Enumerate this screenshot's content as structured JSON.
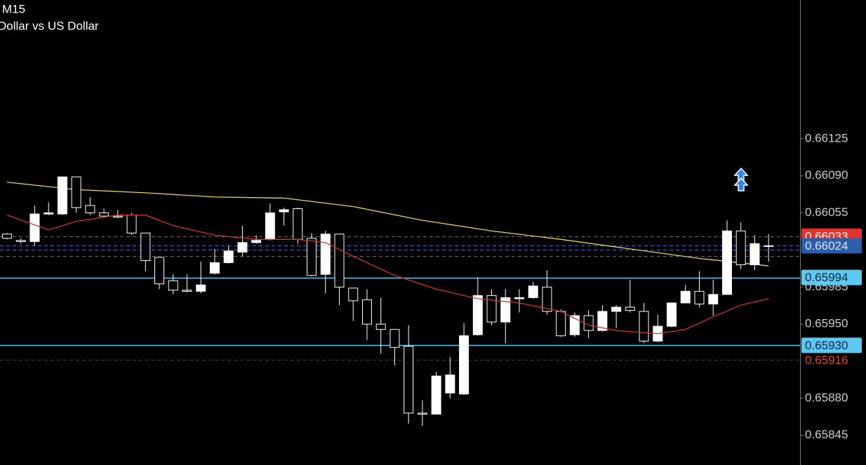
{
  "chart_data": {
    "type": "candlestick",
    "title": "M15",
    "subtitle": "Dollar vs US Dollar",
    "up_color": "#ffffff",
    "down_color": "#000000",
    "wick_color": "#ffffff",
    "open": [
      0.66035,
      0.66029,
      0.66028,
      0.66054,
      0.66054,
      0.66089,
      0.66062,
      0.66055,
      0.66052,
      0.66053,
      0.66036,
      0.66013,
      0.65991,
      0.65982,
      0.65981,
      0.65998,
      0.66008,
      0.66018,
      0.66027,
      0.6603,
      0.66056,
      0.66059,
      0.66031,
      0.65997,
      0.66035,
      0.65984,
      0.65973,
      0.6595,
      0.65945,
      0.65929,
      0.65866,
      0.65865,
      0.65885,
      0.65884,
      0.6594,
      0.65977,
      0.65952,
      0.65974,
      0.65975,
      0.65985,
      0.65962,
      0.6594,
      0.65958,
      0.65944,
      0.65962,
      0.65966,
      0.65962,
      0.65934,
      0.65948,
      0.6597,
      0.65981,
      0.65969,
      0.65978,
      0.66038,
      0.66006,
      0.66024
    ],
    "high": [
      0.66036,
      0.66031,
      0.66062,
      0.66065,
      0.66089,
      0.66089,
      0.6607,
      0.66059,
      0.66058,
      0.66055,
      0.66036,
      0.66013,
      0.65997,
      0.65997,
      0.66009,
      0.66021,
      0.66024,
      0.66043,
      0.66034,
      0.66064,
      0.6606,
      0.6606,
      0.66036,
      0.66038,
      0.66035,
      0.65984,
      0.65983,
      0.65975,
      0.65945,
      0.65949,
      0.65878,
      0.65905,
      0.65919,
      0.65951,
      0.65994,
      0.65983,
      0.65983,
      0.65983,
      0.6599,
      0.66001,
      0.65964,
      0.65961,
      0.65963,
      0.65968,
      0.65968,
      0.65992,
      0.6597,
      0.65959,
      0.6597,
      0.65987,
      0.66,
      0.65992,
      0.66048,
      0.66046,
      0.66034,
      0.66035
    ],
    "low": [
      0.6603,
      0.66026,
      0.66024,
      0.66053,
      0.66053,
      0.66055,
      0.66053,
      0.66051,
      0.6605,
      0.66034,
      0.66,
      0.65983,
      0.65978,
      0.6598,
      0.65979,
      0.65997,
      0.66007,
      0.66014,
      0.66026,
      0.66029,
      0.66043,
      0.66026,
      0.65995,
      0.65979,
      0.65968,
      0.65953,
      0.65935,
      0.65922,
      0.65911,
      0.65856,
      0.65854,
      0.65865,
      0.6588,
      0.65883,
      0.65939,
      0.65949,
      0.65932,
      0.65961,
      0.65974,
      0.65959,
      0.65938,
      0.65938,
      0.65937,
      0.65943,
      0.65946,
      0.65961,
      0.65932,
      0.65933,
      0.65947,
      0.6597,
      0.65966,
      0.65958,
      0.65978,
      0.66002,
      0.66001,
      0.66009
    ],
    "close": [
      0.66031,
      0.66028,
      0.66054,
      0.66055,
      0.66089,
      0.6606,
      0.66055,
      0.66052,
      0.66051,
      0.66036,
      0.6601,
      0.65988,
      0.65982,
      0.65981,
      0.65987,
      0.66008,
      0.66019,
      0.66027,
      0.66029,
      0.66055,
      0.66058,
      0.6603,
      0.65996,
      0.66035,
      0.65985,
      0.65972,
      0.6595,
      0.65945,
      0.65928,
      0.65866,
      0.65865,
      0.65901,
      0.65902,
      0.65939,
      0.65977,
      0.65952,
      0.65975,
      0.65975,
      0.65986,
      0.65962,
      0.65939,
      0.65958,
      0.65944,
      0.65962,
      0.65966,
      0.65963,
      0.65934,
      0.65948,
      0.6597,
      0.65981,
      0.65969,
      0.65978,
      0.66038,
      0.66006,
      0.66026,
      0.66024
    ],
    "ma_slow": {
      "color": "#e8d44d",
      "x": [
        0,
        5,
        10,
        15,
        20,
        25,
        30,
        35,
        40,
        45,
        50,
        55
      ],
      "values": [
        0.66084,
        0.66077,
        0.66074,
        0.6607,
        0.66069,
        0.66061,
        0.66048,
        0.66038,
        0.6603,
        0.66021,
        0.66012,
        0.66005
      ]
    },
    "ma_fast": {
      "color": "#d8302a",
      "x": [
        0,
        3,
        5,
        8,
        10,
        12,
        15,
        18,
        21,
        23,
        25,
        28,
        31,
        34,
        37,
        40,
        42,
        44,
        47,
        49,
        51,
        53,
        55
      ],
      "values": [
        0.66053,
        0.66039,
        0.66047,
        0.66053,
        0.66053,
        0.66043,
        0.66034,
        0.6603,
        0.6603,
        0.66027,
        0.66014,
        0.65996,
        0.65983,
        0.65974,
        0.6597,
        0.65962,
        0.65949,
        0.65944,
        0.65941,
        0.65945,
        0.65957,
        0.65968,
        0.65974
      ]
    },
    "ylim": [
      0.65817,
      0.66256
    ],
    "yticks": [
      0.66125,
      {
        "value": 0.6609,
        "label": "0.66090"
      },
      0.66055,
      0.65985,
      {
        "value": 0.6595,
        "label": "0.65950"
      },
      {
        "value": 0.6588,
        "label": "0.65880"
      },
      0.65845
    ],
    "levels": [
      {
        "value": 0.6602,
        "color": "#3a6fc4",
        "dashed": true
      },
      {
        "value": 0.66014,
        "color": "#3a6fc4",
        "dashed": true
      },
      {
        "value": 0.66033,
        "color": "#e0342c",
        "dashed": true,
        "label_bg": "#e0342c",
        "label_color": "#ffffff"
      },
      {
        "value": 0.66024,
        "color": "#3a6fc4",
        "dashed": true,
        "label_bg": "#2d5ea8",
        "label_color": "#dbe6ff"
      },
      {
        "value": 0.65994,
        "color": "#5ec8f0",
        "dashed": false,
        "label_bg": "#5ec8f0",
        "label_color": "#0a2840"
      },
      {
        "value": 0.6593,
        "label": "0.65930",
        "color": "#5ec8f0",
        "dashed": false,
        "label_bg": "#5ec8f0",
        "label_color": "#0a2840"
      },
      {
        "value": 0.65916,
        "color": "#7a2a24",
        "dashed": true,
        "label_color": "#e0452f"
      }
    ]
  }
}
